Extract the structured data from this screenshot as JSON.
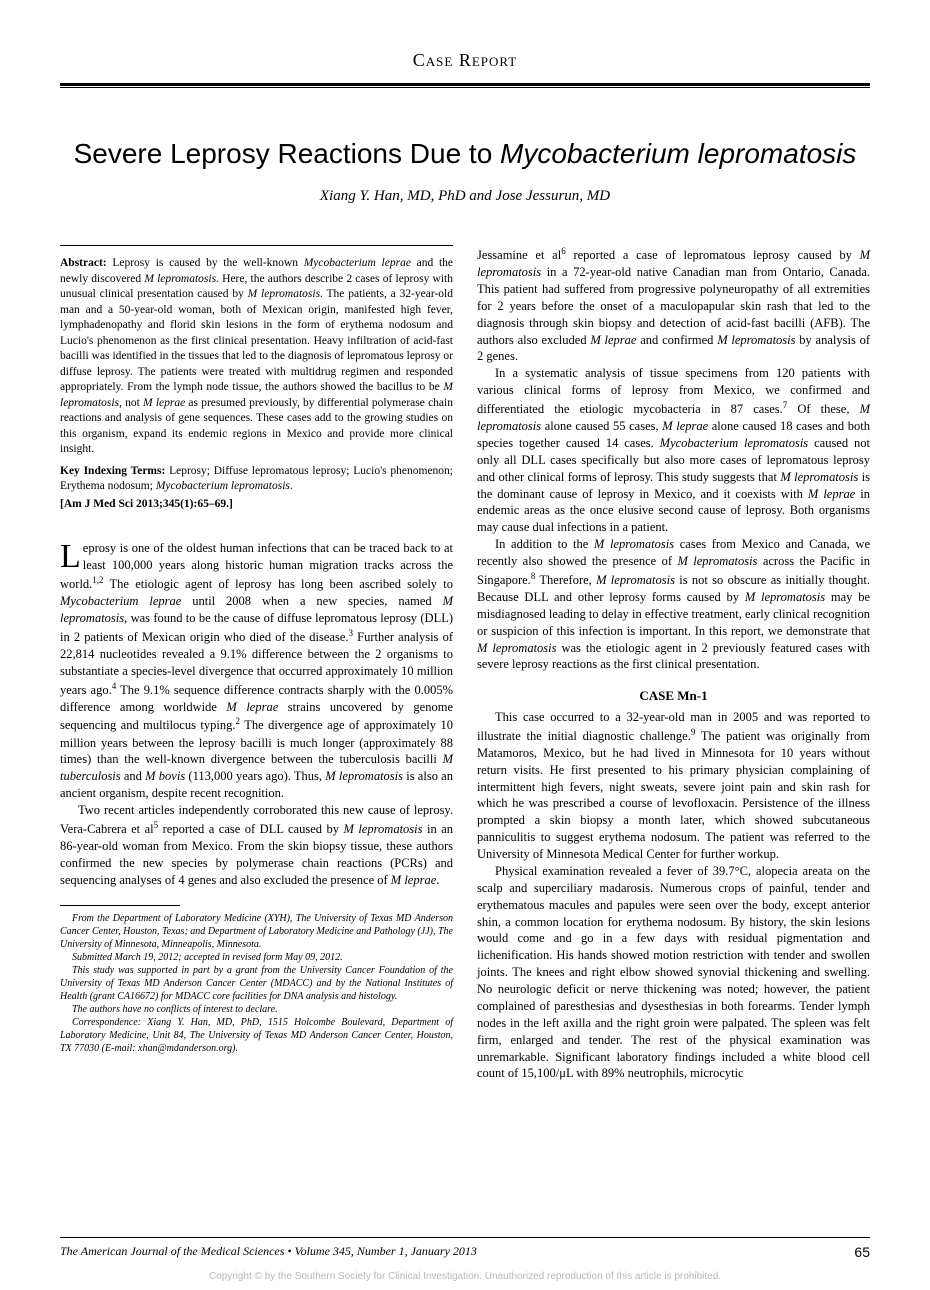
{
  "header": {
    "section_label": "Case Report"
  },
  "title": {
    "plain": "Severe Leprosy Reactions Due to ",
    "italic": "Mycobacterium lepromatosis"
  },
  "authors": "Xiang Y. Han, MD, PhD and Jose Jessurun, MD",
  "abstract": {
    "label": "Abstract:",
    "text_parts": [
      {
        "t": " Leprosy is caused by the well-known ",
        "i": false
      },
      {
        "t": "Mycobacterium leprae",
        "i": true
      },
      {
        "t": " and the newly discovered ",
        "i": false
      },
      {
        "t": "M lepromatosis",
        "i": true
      },
      {
        "t": ". Here, the authors describe 2 cases of leprosy with unusual clinical presentation caused by ",
        "i": false
      },
      {
        "t": "M lepromatosis",
        "i": true
      },
      {
        "t": ". The patients, a 32-year-old man and a 50-year-old woman, both of Mexican origin, manifested high fever, lymphadenopathy and florid skin lesions in the form of erythema nodosum and Lucio's phenomenon as the first clinical presentation. Heavy infiltration of acid-fast bacilli was identified in the tissues that led to the diagnosis of lepromatous leprosy or diffuse leprosy. The patients were treated with multidrug regimen and responded appropriately. From the lymph node tissue, the authors showed the bacillus to be ",
        "i": false
      },
      {
        "t": "M lepromatosis",
        "i": true
      },
      {
        "t": ", not ",
        "i": false
      },
      {
        "t": "M leprae",
        "i": true
      },
      {
        "t": " as presumed previously, by differential polymerase chain reactions and analysis of gene sequences. These cases add to the growing studies on this organism, expand its endemic regions in Mexico and provide more clinical insight.",
        "i": false
      }
    ]
  },
  "key_terms": {
    "label": "Key Indexing Terms:",
    "text_parts": [
      {
        "t": " Leprosy; Diffuse lepromatous leprosy; Lucio's phenomenon; Erythema nodosum; ",
        "i": false
      },
      {
        "t": "Mycobacterium lepromatosis",
        "i": true
      },
      {
        "t": ".",
        "i": false
      }
    ]
  },
  "citation": "[Am J Med Sci 2013;345(1):65–69.]",
  "body": {
    "col1_paras": [
      {
        "dropcap": "L",
        "first": true,
        "parts": [
          {
            "t": "eprosy is one of the oldest human infections that can be traced back to at least 100,000 years along historic human migration tracks across the world.",
            "i": false
          },
          {
            "t": "1,2",
            "sup": true
          },
          {
            "t": " The etiologic agent of leprosy has long been ascribed solely to ",
            "i": false
          },
          {
            "t": "Mycobacterium leprae",
            "i": true
          },
          {
            "t": " until 2008 when a new species, named ",
            "i": false
          },
          {
            "t": "M lepromatosis",
            "i": true
          },
          {
            "t": ", was found to be the cause of diffuse lepromatous leprosy (DLL) in 2 patients of Mexican origin who died of the disease.",
            "i": false
          },
          {
            "t": "3",
            "sup": true
          },
          {
            "t": " Further analysis of 22,814 nucleotides revealed a 9.1% difference between the 2 organisms to substantiate a species-level divergence that occurred approximately 10 million years ago.",
            "i": false
          },
          {
            "t": "4",
            "sup": true
          },
          {
            "t": " The 9.1% sequence difference contracts sharply with the 0.005% difference among worldwide ",
            "i": false
          },
          {
            "t": "M leprae",
            "i": true
          },
          {
            "t": " strains uncovered by genome sequencing and multilocus typing.",
            "i": false
          },
          {
            "t": "2",
            "sup": true
          },
          {
            "t": " The divergence age of approximately 10 million years between the leprosy bacilli is much longer (approximately 88 times) than the well-known divergence between the tuberculosis bacilli ",
            "i": false
          },
          {
            "t": "M tuberculosis",
            "i": true
          },
          {
            "t": " and ",
            "i": false
          },
          {
            "t": "M bovis",
            "i": true
          },
          {
            "t": " (113,000 years ago). Thus, ",
            "i": false
          },
          {
            "t": "M lepromatosis",
            "i": true
          },
          {
            "t": " is also an ancient organism, despite recent recognition.",
            "i": false
          }
        ]
      },
      {
        "parts": [
          {
            "t": "Two recent articles independently corroborated this new cause of leprosy. Vera-Cabrera et al",
            "i": false
          },
          {
            "t": "5",
            "sup": true
          },
          {
            "t": " reported a case of DLL caused by ",
            "i": false
          },
          {
            "t": "M lepromatosis",
            "i": true
          },
          {
            "t": " in an 86-year-old woman from Mexico. From the skin biopsy tissue, these authors confirmed the new species by polymerase chain reactions (PCRs) and sequencing analyses of 4 genes and also excluded the presence of ",
            "i": false
          },
          {
            "t": "M leprae",
            "i": true
          },
          {
            "t": ".",
            "i": false
          }
        ]
      }
    ],
    "col2_paras": [
      {
        "noindent": true,
        "parts": [
          {
            "t": "Jessamine et al",
            "i": false
          },
          {
            "t": "6",
            "sup": true
          },
          {
            "t": " reported a case of lepromatous leprosy caused by ",
            "i": false
          },
          {
            "t": "M lepromatosis",
            "i": true
          },
          {
            "t": " in a 72-year-old native Canadian man from Ontario, Canada. This patient had suffered from progressive polyneuropathy of all extremities for 2 years before the onset of a maculopapular skin rash that led to the diagnosis through skin biopsy and detection of acid-fast bacilli (AFB). The authors also excluded ",
            "i": false
          },
          {
            "t": "M leprae",
            "i": true
          },
          {
            "t": " and confirmed ",
            "i": false
          },
          {
            "t": "M lepromatosis",
            "i": true
          },
          {
            "t": " by analysis of 2 genes.",
            "i": false
          }
        ]
      },
      {
        "parts": [
          {
            "t": "In a systematic analysis of tissue specimens from 120 patients with various clinical forms of leprosy from Mexico, we confirmed and differentiated the etiologic mycobacteria in 87 cases.",
            "i": false
          },
          {
            "t": "7",
            "sup": true
          },
          {
            "t": " Of these, ",
            "i": false
          },
          {
            "t": "M lepromatosis",
            "i": true
          },
          {
            "t": " alone caused 55 cases, ",
            "i": false
          },
          {
            "t": "M leprae",
            "i": true
          },
          {
            "t": " alone caused 18 cases and both species together caused 14 cases. ",
            "i": false
          },
          {
            "t": "Mycobacterium lepromatosis",
            "i": true
          },
          {
            "t": " caused not only all DLL cases specifically but also more cases of lepromatous leprosy and other clinical forms of leprosy. This study suggests that ",
            "i": false
          },
          {
            "t": "M lepromatosis",
            "i": true
          },
          {
            "t": " is the dominant cause of leprosy in Mexico, and it coexists with ",
            "i": false
          },
          {
            "t": "M leprae",
            "i": true
          },
          {
            "t": " in endemic areas as the once elusive second cause of leprosy. Both organisms may cause dual infections in a patient.",
            "i": false
          }
        ]
      },
      {
        "parts": [
          {
            "t": "In addition to the ",
            "i": false
          },
          {
            "t": "M lepromatosis",
            "i": true
          },
          {
            "t": " cases from Mexico and Canada, we recently also showed the presence of ",
            "i": false
          },
          {
            "t": "M lepromatosis",
            "i": true
          },
          {
            "t": " across the Pacific in Singapore.",
            "i": false
          },
          {
            "t": "8",
            "sup": true
          },
          {
            "t": " Therefore, ",
            "i": false
          },
          {
            "t": "M lepromatosis",
            "i": true
          },
          {
            "t": " is not so obscure as initially thought. Because DLL and other leprosy forms caused by ",
            "i": false
          },
          {
            "t": "M lepromatosis",
            "i": true
          },
          {
            "t": " may be misdiagnosed leading to delay in effective treatment, early clinical recognition or suspicion of this infection is important. In this report, we demonstrate that ",
            "i": false
          },
          {
            "t": "M lepromatosis",
            "i": true
          },
          {
            "t": " was the etiologic agent in 2 previously featured cases with severe leprosy reactions as the first clinical presentation.",
            "i": false
          }
        ]
      }
    ],
    "case_heading": "CASE Mn-1",
    "case_paras": [
      {
        "parts": [
          {
            "t": "This case occurred to a 32-year-old man in 2005 and was reported to illustrate the initial diagnostic challenge.",
            "i": false
          },
          {
            "t": "9",
            "sup": true
          },
          {
            "t": " The patient was originally from Matamoros, Mexico, but he had lived in Minnesota for 10 years without return visits. He first presented to his primary physician complaining of intermittent high fevers, night sweats, severe joint pain and skin rash for which he was prescribed a course of levofloxacin. Persistence of the illness prompted a skin biopsy a month later, which showed subcutaneous panniculitis to suggest erythema nodosum. The patient was referred to the University of Minnesota Medical Center for further workup.",
            "i": false
          }
        ]
      },
      {
        "parts": [
          {
            "t": "Physical examination revealed a fever of 39.7°C, alopecia areata on the scalp and superciliary madarosis. Numerous crops of painful, tender and erythematous macules and papules were seen over the body, except anterior shin, a common location for erythema nodosum. By history, the skin lesions would come and go in a few days with residual pigmentation and lichenification. His hands showed motion restriction with tender and swollen joints. The knees and right elbow showed synovial thickening and swelling. No neurologic deficit or nerve thickening was noted; however, the patient complained of paresthesias and dysesthesias in both forearms. Tender lymph nodes in the left axilla and the right groin were palpated. The spleen was felt firm, enlarged and tender. The rest of the physical examination was unremarkable. Significant laboratory findings included a white blood cell count of 15,100/μL with 89% neutrophils, microcytic",
            "i": false
          }
        ]
      }
    ]
  },
  "footnotes": [
    "From the Department of Laboratory Medicine (XYH), The University of Texas MD Anderson Cancer Center, Houston, Texas; and Department of Laboratory Medicine and Pathology (JJ), The University of Minnesota, Minneapolis, Minnesota.",
    "Submitted March 19, 2012; accepted in revised form May 09, 2012.",
    "This study was supported in part by a grant from the University Cancer Foundation of the University of Texas MD Anderson Cancer Center (MDACC) and by the National Institutes of Health (grant CA16672) for MDACC core facilities for DNA analysis and histology.",
    "The authors have no conflicts of interest to declare.",
    "Correspondence: Xiang Y. Han, MD, PhD, 1515 Holcombe Boulevard, Department of Laboratory Medicine, Unit 84, The University of Texas MD Anderson Cancer Center, Houston, TX 77030 (E-mail: xhan@mdanderson.org)."
  ],
  "footer": {
    "journal": "The American Journal of the Medical Sciences",
    "volume": "Volume 345, Number 1, January 2013",
    "page": "65"
  },
  "copyright": "Copyright © by the Southern Society for Clinical Investigation. Unauthorized reproduction of this article is prohibited."
}
